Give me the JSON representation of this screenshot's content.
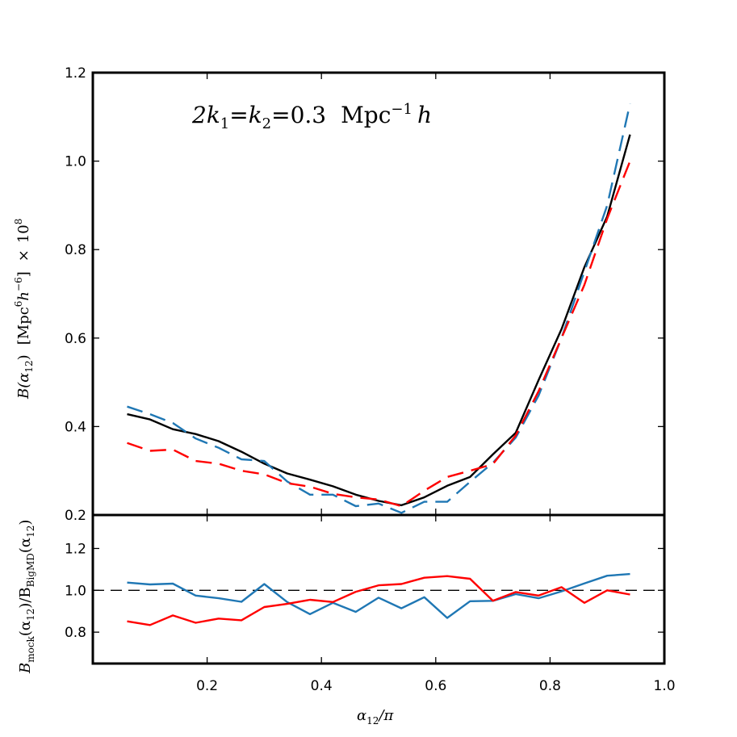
{
  "chart_data": [
    {
      "type": "line",
      "panel": "top",
      "title": "",
      "annotation": {
        "text": "2k",
        "sub1": "1",
        "eq1": "=k",
        "sub2": "2",
        "eq2": "=0.3",
        "unit": "Mpc",
        "sup": "−1",
        "h": "h"
      },
      "ylabel": {
        "main": "B(α",
        "sub": "12",
        "close": ")",
        "unit_open": "[Mpc",
        "sup6": "6",
        "h": "h",
        "supm6": "−6",
        "unit_close": "]",
        "times": "×",
        "ten": "10",
        "sup8": "8"
      },
      "xlim": [
        0.0,
        1.0
      ],
      "ylim": [
        0.2,
        1.2
      ],
      "yticks": [
        "0.2",
        "0.4",
        "0.6",
        "0.8",
        "1.0",
        "1.2"
      ],
      "series": [
        {
          "color": "#000000",
          "style": "solid",
          "x": [
            0.06,
            0.1,
            0.14,
            0.18,
            0.22,
            0.26,
            0.3,
            0.34,
            0.38,
            0.42,
            0.46,
            0.5,
            0.54,
            0.58,
            0.62,
            0.66,
            0.7,
            0.74,
            0.78,
            0.82,
            0.86,
            0.9,
            0.94
          ],
          "y": [
            0.428,
            0.416,
            0.394,
            0.383,
            0.367,
            0.343,
            0.316,
            0.294,
            0.28,
            0.265,
            0.246,
            0.232,
            0.222,
            0.24,
            0.266,
            0.286,
            0.337,
            0.386,
            0.505,
            0.62,
            0.76,
            0.875,
            1.06
          ]
        },
        {
          "color": "#1f77b4",
          "style": "dashed",
          "x": [
            0.06,
            0.1,
            0.14,
            0.18,
            0.22,
            0.26,
            0.3,
            0.34,
            0.38,
            0.42,
            0.46,
            0.5,
            0.54,
            0.58,
            0.62,
            0.66,
            0.7,
            0.74,
            0.78,
            0.82,
            0.86,
            0.9,
            0.94
          ],
          "y": [
            0.445,
            0.428,
            0.408,
            0.373,
            0.352,
            0.326,
            0.322,
            0.276,
            0.246,
            0.246,
            0.22,
            0.226,
            0.205,
            0.23,
            0.23,
            0.275,
            0.318,
            0.375,
            0.47,
            0.6,
            0.75,
            0.9,
            1.13
          ]
        },
        {
          "color": "#ff0000",
          "style": "dashed",
          "x": [
            0.06,
            0.1,
            0.14,
            0.18,
            0.22,
            0.26,
            0.3,
            0.34,
            0.38,
            0.42,
            0.46,
            0.5,
            0.54,
            0.58,
            0.62,
            0.66,
            0.7,
            0.74,
            0.78,
            0.82,
            0.86,
            0.9,
            0.94
          ],
          "y": [
            0.363,
            0.345,
            0.348,
            0.322,
            0.316,
            0.3,
            0.292,
            0.272,
            0.264,
            0.248,
            0.24,
            0.235,
            0.22,
            0.255,
            0.286,
            0.3,
            0.315,
            0.38,
            0.48,
            0.6,
            0.72,
            0.87,
            1.0
          ]
        }
      ]
    },
    {
      "type": "line",
      "panel": "bottom",
      "title": "",
      "ylabel": {
        "B1": "B",
        "sub1": "mock",
        "mid": "(α",
        "s12a": "12",
        "div": ")/B",
        "sub2": "BigMD",
        "mid2": "(α",
        "s12b": "12",
        "close": ")"
      },
      "xlabel": {
        "alpha": "α",
        "sub": "12",
        "rest": "/π"
      },
      "xlim": [
        0.0,
        1.0
      ],
      "ylim": [
        0.65,
        1.36
      ],
      "xticks": [
        "0.2",
        "0.4",
        "0.6",
        "0.8",
        "1.0"
      ],
      "yticks": [
        "0.8",
        "1.0",
        "1.2"
      ],
      "reference_line": 1.0,
      "series": [
        {
          "color": "#1f77b4",
          "style": "solid",
          "x": [
            0.06,
            0.1,
            0.14,
            0.18,
            0.22,
            0.26,
            0.3,
            0.34,
            0.38,
            0.42,
            0.46,
            0.5,
            0.54,
            0.58,
            0.62,
            0.66,
            0.7,
            0.74,
            0.78,
            0.82,
            0.86,
            0.9,
            0.94
          ],
          "y": [
            1.037,
            1.028,
            1.032,
            0.975,
            0.962,
            0.945,
            1.03,
            0.944,
            0.886,
            0.94,
            0.897,
            0.965,
            0.914,
            0.967,
            0.868,
            0.948,
            0.95,
            0.982,
            0.962,
            0.995,
            1.033,
            1.07,
            1.078
          ]
        },
        {
          "color": "#ff0000",
          "style": "solid",
          "x": [
            0.06,
            0.1,
            0.14,
            0.18,
            0.22,
            0.26,
            0.3,
            0.34,
            0.38,
            0.42,
            0.46,
            0.5,
            0.54,
            0.58,
            0.62,
            0.66,
            0.7,
            0.74,
            0.78,
            0.82,
            0.86,
            0.9,
            0.94
          ],
          "y": [
            0.852,
            0.834,
            0.88,
            0.845,
            0.865,
            0.857,
            0.92,
            0.935,
            0.955,
            0.944,
            0.993,
            1.024,
            1.03,
            1.06,
            1.068,
            1.055,
            0.95,
            0.992,
            0.975,
            1.015,
            0.94,
            1.0,
            0.98
          ]
        }
      ]
    }
  ]
}
